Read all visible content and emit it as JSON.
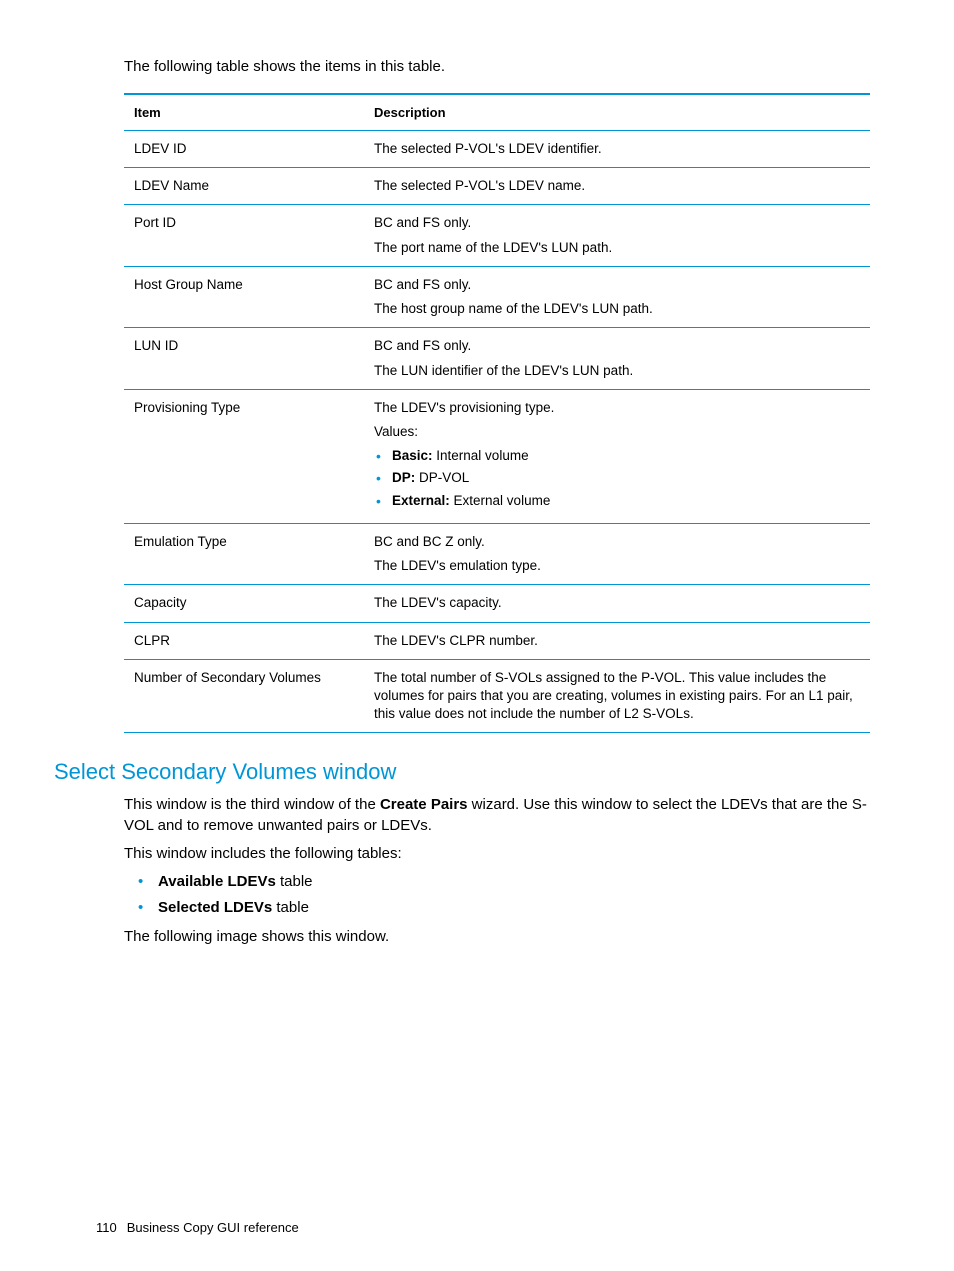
{
  "colors": {
    "accent": "#0096d6",
    "text": "#000000",
    "background": "#ffffff"
  },
  "intro": "The following table shows the items in this table.",
  "table": {
    "headers": {
      "item": "Item",
      "description": "Description"
    },
    "rows": {
      "ldev_id": {
        "item": "LDEV ID",
        "desc": "The selected P-VOL's LDEV identifier."
      },
      "ldev_name": {
        "item": "LDEV Name",
        "desc": "The selected P-VOL's LDEV name."
      },
      "port_id": {
        "item": "Port ID",
        "l1": "BC and FS only.",
        "l2": "The port name of the LDEV's LUN path."
      },
      "host_group": {
        "item": "Host Group Name",
        "l1": "BC and FS only.",
        "l2": "The host group name of the LDEV's LUN path."
      },
      "lun_id": {
        "item": "LUN ID",
        "l1": "BC and FS only.",
        "l2": "The LUN identifier of the LDEV's LUN path."
      },
      "prov": {
        "item": "Provisioning Type",
        "l1": "The LDEV's provisioning type.",
        "l2": "Values:",
        "bullets": {
          "b1b": "Basic:",
          "b1t": " Internal volume",
          "b2b": "DP:",
          "b2t": " DP-VOL",
          "b3b": "External:",
          "b3t": " External volume"
        }
      },
      "emul": {
        "item": "Emulation Type",
        "l1": "BC and BC Z only.",
        "l2": "The LDEV's emulation type."
      },
      "capacity": {
        "item": "Capacity",
        "desc": "The LDEV's capacity."
      },
      "clpr": {
        "item": "CLPR",
        "desc": "The LDEV's CLPR number."
      },
      "nsec": {
        "item": "Number of Secondary Volumes",
        "desc": "The total number of S-VOLs assigned to the P-VOL. This value includes the volumes for pairs that you are creating, volumes in existing pairs. For an L1 pair, this value does not include the number of L2 S-VOLs."
      }
    }
  },
  "section": {
    "heading": "Select Secondary Volumes window",
    "p1a": "This window is the third window of the ",
    "p1b": "Create Pairs",
    "p1c": " wizard. Use this window to select the LDEVs that are the S-VOL and to remove unwanted pairs or LDEVs.",
    "p2": "This window includes the following tables:",
    "bullets": {
      "b1b": "Available LDEVs",
      "b1t": " table",
      "b2b": "Selected LDEVs",
      "b2t": " table"
    },
    "p3": "The following image shows this window."
  },
  "footer": {
    "page": "110",
    "title": "Business Copy GUI reference"
  }
}
